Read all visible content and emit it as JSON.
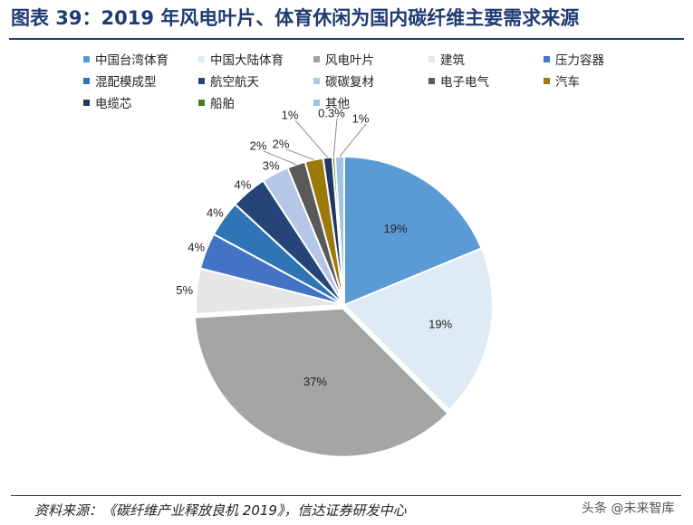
{
  "chart_data": {
    "type": "pie",
    "title": "图表 39：2019 年风电叶片、体育休闲为国内碳纤维主要需求来源",
    "categories": [
      "中国台湾体育",
      "中国大陆体育",
      "风电叶片",
      "建筑",
      "压力容器",
      "混配模成型",
      "航空航天",
      "碳碳复材",
      "电子电气",
      "汽车",
      "电缆芯",
      "船舶",
      "其他"
    ],
    "values": [
      19,
      19,
      37,
      5,
      4,
      4,
      4,
      3,
      2,
      2,
      1,
      0.3,
      1
    ],
    "labels": [
      "19%",
      "19%",
      "37%",
      "5%",
      "4%",
      "4%",
      "4%",
      "3%",
      "2%",
      "2%",
      "1%",
      "0.3%",
      "1%"
    ],
    "colors": [
      "#5b9bd5",
      "#ddebf7",
      "#a5a5a5",
      "#e6e6e6",
      "#4472c4",
      "#2e75b6",
      "#264478",
      "#b4c7e7",
      "#595959",
      "#9c7a0a",
      "#1f3864",
      "#4a7a2a",
      "#9dc3e6"
    ],
    "legend_position": "top"
  },
  "footer": {
    "source": "资料来源：《碳纤维产业释放良机 2019》，信达证券研发中心",
    "watermark": "头条 @未来智库"
  }
}
